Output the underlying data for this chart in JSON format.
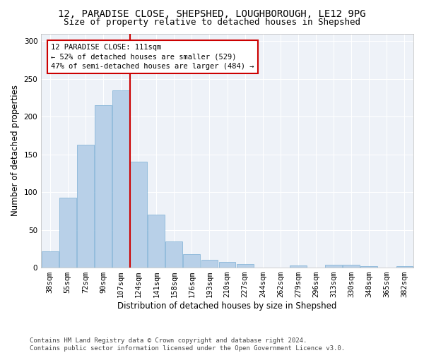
{
  "title1": "12, PARADISE CLOSE, SHEPSHED, LOUGHBOROUGH, LE12 9PG",
  "title2": "Size of property relative to detached houses in Shepshed",
  "xlabel": "Distribution of detached houses by size in Shepshed",
  "ylabel": "Number of detached properties",
  "bar_color": "#b8d0e8",
  "bar_edge_color": "#7bafd4",
  "categories": [
    "38sqm",
    "55sqm",
    "72sqm",
    "90sqm",
    "107sqm",
    "124sqm",
    "141sqm",
    "158sqm",
    "176sqm",
    "193sqm",
    "210sqm",
    "227sqm",
    "244sqm",
    "262sqm",
    "279sqm",
    "296sqm",
    "313sqm",
    "330sqm",
    "348sqm",
    "365sqm",
    "382sqm"
  ],
  "values": [
    22,
    93,
    163,
    215,
    235,
    140,
    70,
    35,
    18,
    10,
    8,
    5,
    0,
    0,
    3,
    0,
    4,
    4,
    2,
    0,
    2
  ],
  "ylim": [
    0,
    310
  ],
  "yticks": [
    0,
    50,
    100,
    150,
    200,
    250,
    300
  ],
  "vline_color": "#cc0000",
  "annotation_text": "12 PARADISE CLOSE: 111sqm\n← 52% of detached houses are smaller (529)\n47% of semi-detached houses are larger (484) →",
  "footnote": "Contains HM Land Registry data © Crown copyright and database right 2024.\nContains public sector information licensed under the Open Government Licence v3.0.",
  "background_color": "#eef2f8",
  "grid_color": "#ffffff",
  "title_fontsize": 10,
  "subtitle_fontsize": 9,
  "axis_label_fontsize": 8.5,
  "tick_fontsize": 7.5,
  "footnote_fontsize": 6.5,
  "annotation_fontsize": 7.5
}
